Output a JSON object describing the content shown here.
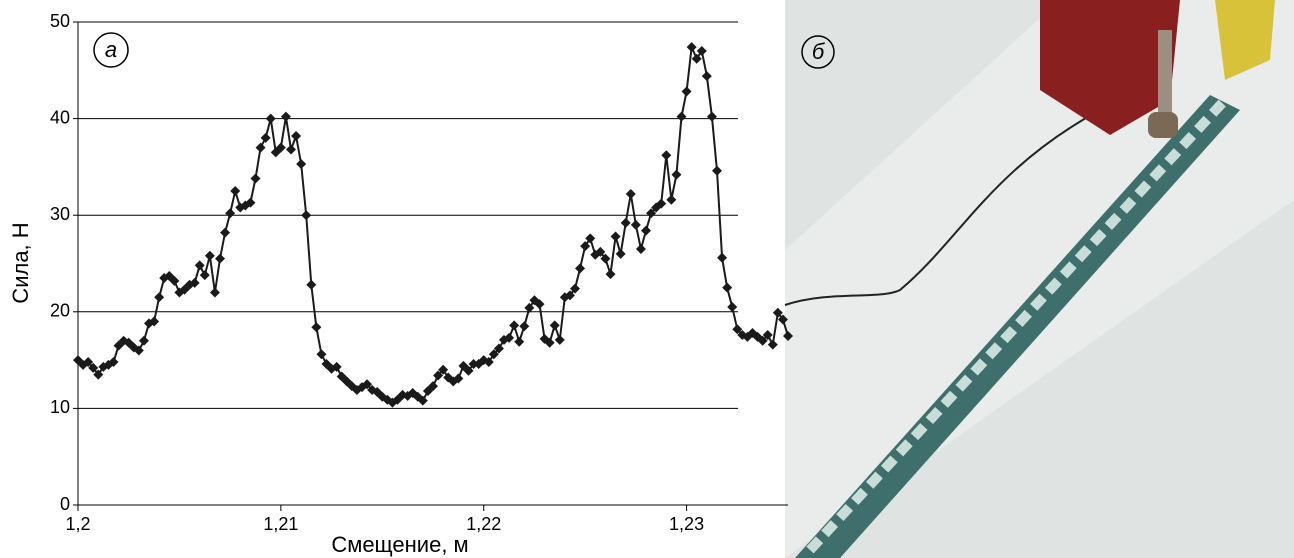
{
  "chart_data": {
    "type": "line",
    "x": [
      1.2,
      1.20025,
      1.2005,
      1.20075,
      1.201,
      1.20125,
      1.2015,
      1.20175,
      1.202,
      1.20225,
      1.2025,
      1.20275,
      1.203,
      1.20325,
      1.2035,
      1.20375,
      1.204,
      1.20425,
      1.2045,
      1.20475,
      1.205,
      1.20525,
      1.2055,
      1.20575,
      1.206,
      1.20625,
      1.2065,
      1.20675,
      1.207,
      1.20725,
      1.2075,
      1.20775,
      1.208,
      1.20825,
      1.2085,
      1.20875,
      1.209,
      1.20925,
      1.2095,
      1.20975,
      1.21,
      1.21025,
      1.2105,
      1.21075,
      1.211,
      1.21125,
      1.2115,
      1.21175,
      1.212,
      1.21225,
      1.2125,
      1.21275,
      1.213,
      1.21325,
      1.2135,
      1.21375,
      1.214,
      1.21425,
      1.2145,
      1.21475,
      1.215,
      1.21525,
      1.2155,
      1.21575,
      1.216,
      1.21625,
      1.2165,
      1.21675,
      1.217,
      1.21725,
      1.2175,
      1.21775,
      1.218,
      1.21825,
      1.2185,
      1.21875,
      1.219,
      1.21925,
      1.2195,
      1.21975,
      1.22,
      1.22025,
      1.2205,
      1.22075,
      1.221,
      1.22125,
      1.2215,
      1.22175,
      1.222,
      1.22225,
      1.2225,
      1.22275,
      1.223,
      1.22325,
      1.2235,
      1.22375,
      1.224,
      1.22425,
      1.2245,
      1.22475,
      1.225,
      1.22525,
      1.2255,
      1.22575,
      1.226,
      1.22625,
      1.2265,
      1.22675,
      1.227,
      1.22725,
      1.2275,
      1.22775,
      1.228,
      1.22825,
      1.2285,
      1.22875,
      1.229,
      1.22925,
      1.2295,
      1.22975,
      1.23,
      1.23025,
      1.2305,
      1.23075,
      1.231,
      1.23125,
      1.2315,
      1.23175,
      1.232,
      1.23225,
      1.2325,
      1.23275,
      1.233,
      1.23325,
      1.2335,
      1.23375,
      1.234,
      1.23425,
      1.2345,
      1.23475,
      1.235
    ],
    "values": [
      15,
      14.5,
      14.8,
      14.2,
      13.5,
      14.3,
      14.5,
      14.8,
      16.5,
      17,
      16.8,
      16.3,
      16,
      17,
      18.8,
      19,
      21.5,
      23.5,
      23.7,
      23.2,
      22,
      22.3,
      22.8,
      23,
      24.8,
      23.8,
      25.8,
      22,
      25.5,
      28.2,
      30.2,
      32.5,
      30.8,
      31,
      31.3,
      33.8,
      37,
      38,
      40,
      36.5,
      37,
      40.2,
      36.8,
      38.2,
      35.3,
      30,
      22.8,
      18.4,
      15.6,
      14.6,
      14.1,
      14.3,
      13.3,
      12.8,
      12.3,
      11.9,
      12.2,
      12.5,
      11.9,
      11.7,
      11.2,
      10.9,
      10.6,
      10.9,
      11.4,
      11.3,
      11.6,
      11.2,
      10.8,
      11.8,
      12.3,
      13.4,
      14,
      13.2,
      12.8,
      13.1,
      14.4,
      13.9,
      14.6,
      14.6,
      15,
      14.8,
      15.6,
      16.2,
      17.1,
      17.3,
      18.6,
      16.9,
      18.5,
      20.4,
      21.2,
      20.8,
      17.2,
      16.8,
      18.6,
      17.1,
      21.5,
      21.7,
      22.4,
      24.5,
      26.8,
      27.6,
      25.9,
      26.2,
      25.5,
      23.9,
      27.8,
      26,
      29.2,
      32.2,
      29,
      26.5,
      28.4,
      30.2,
      30.8,
      31.2,
      36.2,
      31.6,
      34.2,
      40.2,
      42.8,
      47.4,
      46.2,
      47,
      44.4,
      40.2,
      34.6,
      25.6,
      22.5,
      20.5,
      18.2,
      17.6,
      17.4,
      17.8,
      17.4,
      17,
      17.6,
      16.6,
      19.9,
      19.2,
      17.5
    ],
    "color": "#1a1a1a",
    "xlim": [
      1.2,
      1.235
    ],
    "xticks": [
      {
        "value": 1.2,
        "label": "1,2"
      },
      {
        "value": 1.21,
        "label": "1,21"
      },
      {
        "value": 1.22,
        "label": "1,22"
      },
      {
        "value": 1.23,
        "label": "1,23"
      }
    ],
    "ylim": [
      0,
      50
    ],
    "yticks": [
      0,
      10,
      20,
      30,
      40,
      50
    ],
    "grid": true,
    "xlabel": "Смещение, м",
    "ylabel": "Сила, Н",
    "annotation": "а"
  },
  "photo": {
    "label": "б"
  }
}
